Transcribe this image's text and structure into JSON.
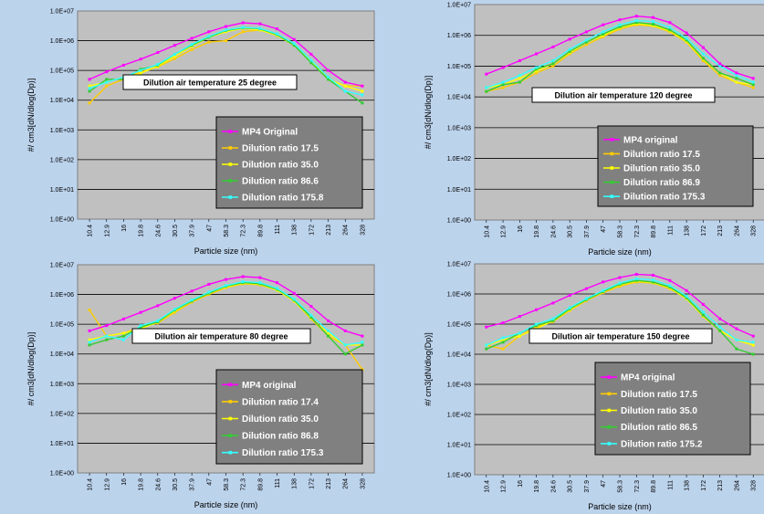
{
  "chart_data": [
    {
      "type": "line",
      "title": "Dilution air temperature 25 degree",
      "ylabel": "#/ cm3[dN/dlog(Dp)]",
      "xlabel": "Particle size (nm)",
      "y_scale": "log",
      "ylim": [
        1,
        10000000
      ],
      "ytick_labels": [
        "1.0E+00",
        "1.0E+01",
        "1.0E+02",
        "1.0E+03",
        "1.0E+04",
        "1.0E+05",
        "1.0E+06",
        "1.0E+07"
      ],
      "categories": [
        "10.4",
        "12.9",
        "16",
        "19.8",
        "24.6",
        "30.5",
        "37.9",
        "47",
        "58.3",
        "72.3",
        "89.8",
        "111",
        "138",
        "172",
        "213",
        "264",
        "328"
      ],
      "legend_position": "bottom-right",
      "grid": true,
      "series": [
        {
          "name": "MP4 Original",
          "color": "#ff00ff",
          "values": [
            50000,
            90000,
            150000,
            240000,
            400000,
            700000,
            1200000,
            2000000,
            3000000,
            4000000,
            3700000,
            2500000,
            1100000,
            350000,
            100000,
            40000,
            30000
          ]
        },
        {
          "name": "Dilution ratio 17.5",
          "color": "#ffcc00",
          "values": [
            8000,
            30000,
            50000,
            90000,
            130000,
            250000,
            500000,
            900000,
            1000000,
            2000000,
            2300000,
            1500000,
            700000,
            200000,
            50000,
            30000,
            30000
          ]
        },
        {
          "name": "Dilution ratio 35.0",
          "color": "#ffff00",
          "values": [
            30000,
            40000,
            60000,
            80000,
            140000,
            300000,
            650000,
            1300000,
            2000000,
            2600000,
            2300000,
            1500000,
            700000,
            200000,
            50000,
            30000,
            20000
          ]
        },
        {
          "name": "Dilution ratio 86.6",
          "color": "#33cc33",
          "values": [
            20000,
            50000,
            50000,
            110000,
            150000,
            350000,
            700000,
            1300000,
            2200000,
            2700000,
            2500000,
            1600000,
            700000,
            180000,
            50000,
            20000,
            8000
          ]
        },
        {
          "name": "Dilution ratio 175.8",
          "color": "#33ffff",
          "values": [
            25000,
            40000,
            60000,
            100000,
            160000,
            350000,
            750000,
            1400000,
            2300000,
            2800000,
            2600000,
            1700000,
            800000,
            220000,
            60000,
            20000,
            15000
          ]
        }
      ]
    },
    {
      "type": "line",
      "title": "Dilution air temperature 120 degree",
      "ylabel": "#/ cm3[dN/dlog(Dp)]",
      "xlabel": "Particle size (nm)",
      "y_scale": "log",
      "ylim": [
        1,
        10000000
      ],
      "ytick_labels": [
        "1.0E+00",
        "1.0E+01",
        "1.0E+02",
        "1.0E+03",
        "1.0E+04",
        "1.0E+05",
        "1.0E+06",
        "1.0E+07"
      ],
      "categories": [
        "10.4",
        "12.9",
        "16",
        "19.8",
        "24.6",
        "30.5",
        "37.9",
        "47",
        "58.3",
        "72.3",
        "89.8",
        "111",
        "138",
        "172",
        "213",
        "264",
        "328"
      ],
      "legend_position": "bottom-right",
      "grid": true,
      "series": [
        {
          "name": "MP4 original",
          "color": "#ff00ff",
          "values": [
            55000,
            90000,
            150000,
            250000,
            420000,
            750000,
            1300000,
            2200000,
            3200000,
            4200000,
            3800000,
            2600000,
            1200000,
            400000,
            120000,
            60000,
            40000
          ]
        },
        {
          "name": "Dilution ratio 17.5",
          "color": "#ffcc00",
          "values": [
            15000,
            20000,
            30000,
            60000,
            100000,
            250000,
            500000,
            900000,
            1600000,
            2200000,
            2000000,
            1300000,
            600000,
            150000,
            50000,
            30000,
            20000
          ]
        },
        {
          "name": "Dilution ratio 35.0",
          "color": "#ffff00",
          "values": [
            20000,
            25000,
            40000,
            70000,
            120000,
            280000,
            600000,
            1000000,
            1800000,
            2400000,
            2100000,
            1400000,
            650000,
            170000,
            60000,
            30000,
            25000
          ]
        },
        {
          "name": "Dilution ratio 86.9",
          "color": "#33cc33",
          "values": [
            15000,
            25000,
            30000,
            80000,
            120000,
            300000,
            600000,
            1100000,
            1900000,
            2600000,
            2300000,
            1500000,
            700000,
            180000,
            60000,
            40000,
            25000
          ]
        },
        {
          "name": "Dilution ratio 175.3",
          "color": "#33ffff",
          "values": [
            20000,
            30000,
            50000,
            90000,
            150000,
            350000,
            700000,
            1300000,
            2200000,
            3000000,
            2800000,
            1800000,
            800000,
            250000,
            100000,
            50000,
            30000
          ]
        }
      ]
    },
    {
      "type": "line",
      "title": "Dilution air temperature 80 degree",
      "ylabel": "#/ cm3[dN/dlog(Dp)]",
      "xlabel": "Particle size (nm)",
      "y_scale": "log",
      "ylim": [
        1,
        10000000
      ],
      "ytick_labels": [
        "1.0E+00",
        "1.0E+01",
        "1.0E+02",
        "1.0E+03",
        "1.0E+04",
        "1.0E+05",
        "1.0E+06",
        "1.0E+07"
      ],
      "categories": [
        "10.4",
        "12.9",
        "16",
        "19.8",
        "24.6",
        "30.5",
        "37.9",
        "47",
        "58.3",
        "72.3",
        "89.8",
        "111",
        "138",
        "172",
        "213",
        "264",
        "328"
      ],
      "legend_position": "bottom-right",
      "grid": true,
      "series": [
        {
          "name": "MP4 original",
          "color": "#ff00ff",
          "values": [
            60000,
            90000,
            150000,
            250000,
            420000,
            750000,
            1300000,
            2200000,
            3200000,
            4000000,
            3700000,
            2500000,
            1100000,
            400000,
            130000,
            60000,
            40000
          ]
        },
        {
          "name": "Dilution ratio 17.4",
          "color": "#ffcc00",
          "values": [
            300000,
            40000,
            50000,
            80000,
            110000,
            250000,
            550000,
            1000000,
            1700000,
            2300000,
            2100000,
            1400000,
            600000,
            150000,
            40000,
            20000,
            3000
          ]
        },
        {
          "name": "Dilution ratio 35.0",
          "color": "#ffff00",
          "values": [
            30000,
            40000,
            50000,
            70000,
            120000,
            280000,
            600000,
            1100000,
            1800000,
            2400000,
            2200000,
            1400000,
            600000,
            160000,
            50000,
            20000,
            20000
          ]
        },
        {
          "name": "Dilution ratio 86.8",
          "color": "#33cc33",
          "values": [
            20000,
            30000,
            40000,
            80000,
            120000,
            300000,
            600000,
            1100000,
            1900000,
            2500000,
            2300000,
            1500000,
            650000,
            170000,
            40000,
            10000,
            20000
          ]
        },
        {
          "name": "Dilution ratio 175.3",
          "color": "#33ffff",
          "values": [
            25000,
            40000,
            30000,
            90000,
            130000,
            320000,
            650000,
            1200000,
            2000000,
            2700000,
            2500000,
            1600000,
            700000,
            200000,
            60000,
            20000,
            25000
          ]
        }
      ]
    },
    {
      "type": "line",
      "title": "Dilution air temperature 150 degree",
      "ylabel": "#/ cm3[dN/dlog(Dp)]",
      "xlabel": "Particle size (nm)",
      "y_scale": "log",
      "ylim": [
        1,
        10000000
      ],
      "ytick_labels": [
        "1.0E+00",
        "1.0E+01",
        "1.0E+02",
        "1.0E+03",
        "1.0E+04",
        "1.0E+05",
        "1.0E+06",
        "1.0E+07"
      ],
      "categories": [
        "10.4",
        "12.9",
        "16",
        "19.8",
        "24.6",
        "30.5",
        "37.9",
        "47",
        "58.3",
        "72.3",
        "89.8",
        "111",
        "138",
        "172",
        "213",
        "264",
        "328"
      ],
      "legend_position": "bottom-right",
      "grid": true,
      "series": [
        {
          "name": "MP4 original",
          "color": "#ff00ff",
          "values": [
            80000,
            110000,
            180000,
            300000,
            500000,
            900000,
            1500000,
            2500000,
            3500000,
            4500000,
            4200000,
            2800000,
            1300000,
            450000,
            150000,
            70000,
            40000
          ]
        },
        {
          "name": "Dilution ratio 17.5",
          "color": "#ffcc00",
          "values": [
            20000,
            15000,
            40000,
            80000,
            120000,
            280000,
            600000,
            1100000,
            1800000,
            2500000,
            2300000,
            1500000,
            700000,
            180000,
            60000,
            30000,
            20000
          ]
        },
        {
          "name": "Dilution ratio 35.0",
          "color": "#ffff00",
          "values": [
            20000,
            30000,
            40000,
            70000,
            130000,
            300000,
            650000,
            1200000,
            2000000,
            2700000,
            2400000,
            1600000,
            700000,
            190000,
            60000,
            30000,
            20000
          ]
        },
        {
          "name": "Dilution ratio 86.5",
          "color": "#33cc33",
          "values": [
            15000,
            25000,
            50000,
            90000,
            130000,
            320000,
            650000,
            1200000,
            2100000,
            2800000,
            2500000,
            1700000,
            750000,
            200000,
            60000,
            15000,
            10000
          ]
        },
        {
          "name": "Dilution ratio 175.2",
          "color": "#33ffff",
          "values": [
            20000,
            35000,
            50000,
            100000,
            150000,
            350000,
            700000,
            1300000,
            2300000,
            3200000,
            2900000,
            1900000,
            850000,
            250000,
            80000,
            30000,
            25000
          ]
        }
      ]
    }
  ]
}
